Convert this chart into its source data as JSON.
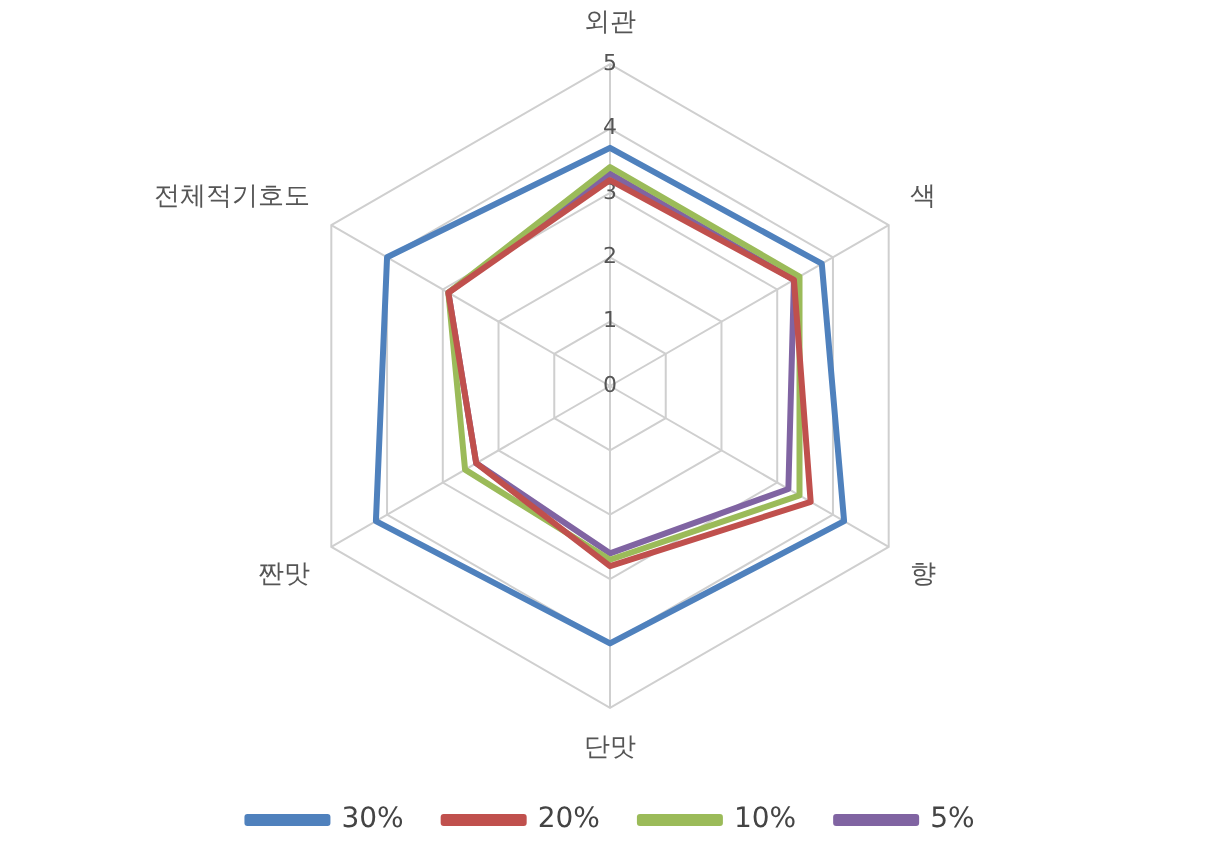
{
  "chart_data": {
    "type": "radar",
    "categories": [
      "외관",
      "색",
      "향",
      "단맛",
      "짠맛",
      "전체적기호도"
    ],
    "series": [
      {
        "name": "30%",
        "color": "#4f81bd",
        "values": [
          3.7,
          3.8,
          4.2,
          4.0,
          4.2,
          4.0
        ]
      },
      {
        "name": "20%",
        "color": "#c0504d",
        "values": [
          3.2,
          3.3,
          3.6,
          2.8,
          2.4,
          2.9
        ]
      },
      {
        "name": "10%",
        "color": "#9bbb59",
        "values": [
          3.4,
          3.4,
          3.4,
          2.7,
          2.6,
          2.9
        ]
      },
      {
        "name": "5%",
        "color": "#8064a2",
        "values": [
          3.3,
          3.3,
          3.2,
          2.6,
          2.4,
          2.9
        ]
      }
    ],
    "ylim": [
      0,
      5
    ],
    "yticks": [
      0,
      1,
      2,
      3,
      4,
      5
    ],
    "grid": true,
    "legend": "bottom",
    "marker": "none"
  }
}
